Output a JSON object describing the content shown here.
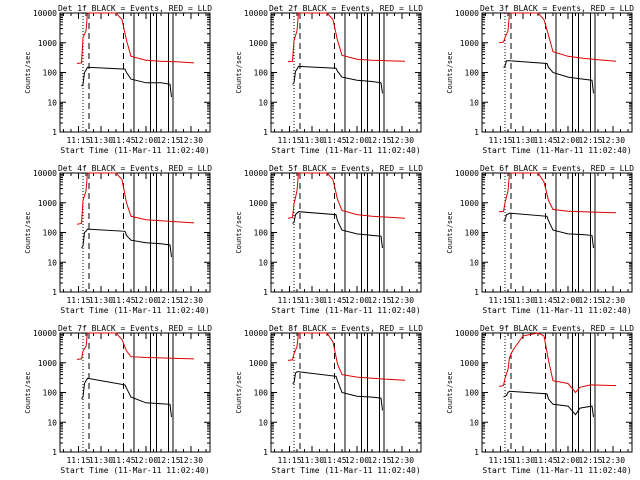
{
  "colors": {
    "events": "#000000",
    "lld": "#e00000",
    "axes": "#000000",
    "background": "#ffffff"
  },
  "chart_data": [
    {
      "type": "line",
      "title": "Det 1f BLACK = Events, RED = LLD",
      "ylabel": "Counts/sec",
      "xlabel": "Start Time (11-Mar-11 11:02:40)",
      "x_ticks": [
        "11:15",
        "11:30",
        "11:45",
        "12:00",
        "12:15",
        "12:30"
      ],
      "y_ticks": [
        "1",
        "10",
        "100",
        "1000",
        "10000"
      ],
      "ylim": [
        1,
        10000
      ],
      "xlim": [
        "11:02:40",
        "12:42:40"
      ],
      "y_scale": "log",
      "dotted_markers": [
        "11:18"
      ],
      "dashed_markers": [
        "11:22",
        "11:45"
      ],
      "solid_markers": [
        "11:52",
        "12:03",
        "12:07",
        "12:15",
        "12:18"
      ],
      "series": [
        {
          "name": "RED",
          "x": [
            "11:14",
            "11:17",
            "11:18",
            "11:20",
            "11:21",
            "11:23",
            "11:30",
            "11:40",
            "11:44",
            "11:47",
            "11:50",
            "12:00",
            "12:10",
            "12:20",
            "12:32"
          ],
          "y": [
            200,
            210,
            1500,
            2500,
            10000,
            10000,
            10000,
            10000,
            6000,
            1200,
            350,
            260,
            240,
            230,
            210
          ]
        },
        {
          "name": "BLACK",
          "x": [
            "11:17",
            "11:18",
            "11:19",
            "11:20",
            "11:21",
            "11:46",
            "11:47",
            "11:50",
            "12:00",
            "12:10",
            "12:16",
            "12:17"
          ],
          "y": [
            35,
            40,
            100,
            120,
            150,
            130,
            100,
            60,
            45,
            45,
            40,
            15
          ]
        }
      ]
    },
    {
      "type": "line",
      "title": "Det 2f BLACK = Events, RED = LLD",
      "ylabel": "Counts/sec",
      "xlabel": "Start Time (11-Mar-11 11:02:40)",
      "x_ticks": [
        "11:15",
        "11:30",
        "11:45",
        "12:00",
        "12:15",
        "12:30"
      ],
      "y_ticks": [
        "1",
        "10",
        "100",
        "1000",
        "10000"
      ],
      "ylim": [
        1,
        10000
      ],
      "xlim": [
        "11:02:40",
        "12:42:40"
      ],
      "y_scale": "log",
      "dotted_markers": [
        "11:18"
      ],
      "dashed_markers": [
        "11:22",
        "11:45"
      ],
      "solid_markers": [
        "11:52",
        "12:03",
        "12:07",
        "12:15",
        "12:18"
      ],
      "series": [
        {
          "name": "RED",
          "x": [
            "11:14",
            "11:17",
            "11:18",
            "11:20",
            "11:21",
            "11:23",
            "11:30",
            "11:40",
            "11:44",
            "11:47",
            "11:50",
            "12:00",
            "12:10",
            "12:20",
            "12:32"
          ],
          "y": [
            230,
            240,
            1200,
            2500,
            10000,
            10000,
            10000,
            10000,
            6000,
            1200,
            380,
            280,
            260,
            250,
            240
          ]
        },
        {
          "name": "BLACK",
          "x": [
            "11:17",
            "11:18",
            "11:19",
            "11:20",
            "11:21",
            "11:46",
            "11:47",
            "11:50",
            "12:00",
            "12:10",
            "12:16",
            "12:17"
          ],
          "y": [
            40,
            45,
            110,
            130,
            160,
            140,
            110,
            70,
            55,
            50,
            45,
            20
          ]
        }
      ]
    },
    {
      "type": "line",
      "title": "Det 3f BLACK = Events, RED = LLD",
      "ylabel": "Counts/sec",
      "xlabel": "Start Time (11-Mar-11 11:02:40)",
      "x_ticks": [
        "11:15",
        "11:30",
        "11:45",
        "12:00",
        "12:15",
        "12:30"
      ],
      "y_ticks": [
        "1",
        "10",
        "100",
        "1000",
        "10000"
      ],
      "ylim": [
        1,
        10000
      ],
      "xlim": [
        "11:02:40",
        "12:42:40"
      ],
      "y_scale": "log",
      "dotted_markers": [
        "11:18"
      ],
      "dashed_markers": [
        "11:22",
        "11:45"
      ],
      "solid_markers": [
        "11:52",
        "12:03",
        "12:07",
        "12:15",
        "12:18"
      ],
      "series": [
        {
          "name": "RED",
          "x": [
            "11:14",
            "11:17",
            "11:18",
            "11:20",
            "11:21",
            "11:23",
            "11:30",
            "11:40",
            "11:44",
            "11:47",
            "11:50",
            "12:00",
            "12:10",
            "12:20",
            "12:32"
          ],
          "y": [
            1000,
            1050,
            1500,
            2500,
            10000,
            10000,
            10000,
            10000,
            6000,
            1800,
            500,
            350,
            300,
            270,
            240
          ]
        },
        {
          "name": "BLACK",
          "x": [
            "11:17",
            "11:18",
            "11:19",
            "11:20",
            "11:21",
            "11:46",
            "11:47",
            "11:50",
            "12:00",
            "12:10",
            "12:16",
            "12:17"
          ],
          "y": [
            150,
            160,
            250,
            250,
            250,
            200,
            150,
            100,
            70,
            60,
            55,
            20
          ]
        }
      ]
    },
    {
      "type": "line",
      "title": "Det 4f BLACK = Events, RED = LLD",
      "ylabel": "Counts/sec",
      "xlabel": "Start Time (11-Mar-11 11:02:40)",
      "x_ticks": [
        "11:15",
        "11:30",
        "11:45",
        "12:00",
        "12:15",
        "12:30"
      ],
      "y_ticks": [
        "1",
        "10",
        "100",
        "1000",
        "10000"
      ],
      "ylim": [
        1,
        10000
      ],
      "xlim": [
        "11:02:40",
        "12:42:40"
      ],
      "y_scale": "log",
      "dotted_markers": [
        "11:18"
      ],
      "dashed_markers": [
        "11:22",
        "11:45"
      ],
      "solid_markers": [
        "11:52",
        "12:03",
        "12:07",
        "12:15",
        "12:18"
      ],
      "series": [
        {
          "name": "RED",
          "x": [
            "11:14",
            "11:17",
            "11:18",
            "11:20",
            "11:21",
            "11:23",
            "11:30",
            "11:40",
            "11:44",
            "11:47",
            "11:50",
            "12:00",
            "12:10",
            "12:20",
            "12:32"
          ],
          "y": [
            190,
            200,
            1200,
            2500,
            10000,
            10000,
            10000,
            10000,
            6000,
            1000,
            350,
            270,
            250,
            230,
            210
          ]
        },
        {
          "name": "BLACK",
          "x": [
            "11:17",
            "11:18",
            "11:19",
            "11:20",
            "11:21",
            "11:46",
            "11:47",
            "11:50",
            "12:00",
            "12:10",
            "12:16",
            "12:17"
          ],
          "y": [
            30,
            35,
            100,
            110,
            130,
            110,
            80,
            55,
            45,
            42,
            38,
            15
          ]
        }
      ]
    },
    {
      "type": "line",
      "title": "Det 5f BLACK = Events, RED = LLD",
      "ylabel": "Counts/sec",
      "xlabel": "Start Time (11-Mar-11 11:02:40)",
      "x_ticks": [
        "11:15",
        "11:30",
        "11:45",
        "12:00",
        "12:15",
        "12:30"
      ],
      "y_ticks": [
        "1",
        "10",
        "100",
        "1000",
        "10000"
      ],
      "ylim": [
        1,
        10000
      ],
      "xlim": [
        "11:02:40",
        "12:42:40"
      ],
      "y_scale": "log",
      "dotted_markers": [
        "11:18"
      ],
      "dashed_markers": [
        "11:22",
        "11:45"
      ],
      "solid_markers": [
        "11:52",
        "12:03",
        "12:07",
        "12:15",
        "12:18"
      ],
      "series": [
        {
          "name": "RED",
          "x": [
            "11:14",
            "11:17",
            "11:18",
            "11:20",
            "11:21",
            "11:23",
            "11:30",
            "11:40",
            "11:44",
            "11:47",
            "11:50",
            "12:00",
            "12:10",
            "12:20",
            "12:32"
          ],
          "y": [
            300,
            320,
            900,
            2500,
            10000,
            10000,
            10000,
            10000,
            6000,
            1300,
            550,
            400,
            350,
            330,
            300
          ]
        },
        {
          "name": "BLACK",
          "x": [
            "11:17",
            "11:18",
            "11:19",
            "11:20",
            "11:21",
            "11:46",
            "11:47",
            "11:50",
            "12:00",
            "12:10",
            "12:16",
            "12:17"
          ],
          "y": [
            200,
            220,
            400,
            450,
            500,
            400,
            250,
            120,
            90,
            80,
            75,
            30
          ]
        }
      ]
    },
    {
      "type": "line",
      "title": "Det 6f BLACK = Events, RED = LLD",
      "ylabel": "Counts/sec",
      "xlabel": "Start Time (11-Mar-11 11:02:40)",
      "x_ticks": [
        "11:15",
        "11:30",
        "11:45",
        "12:00",
        "12:15",
        "12:30"
      ],
      "y_ticks": [
        "1",
        "10",
        "100",
        "1000",
        "10000"
      ],
      "ylim": [
        1,
        10000
      ],
      "xlim": [
        "11:02:40",
        "12:42:40"
      ],
      "y_scale": "log",
      "dotted_markers": [
        "11:18"
      ],
      "dashed_markers": [
        "11:22",
        "11:45"
      ],
      "solid_markers": [
        "11:52",
        "12:03",
        "12:07",
        "12:15",
        "12:18"
      ],
      "series": [
        {
          "name": "RED",
          "x": [
            "11:14",
            "11:17",
            "11:18",
            "11:20",
            "11:21",
            "11:23",
            "11:30",
            "11:40",
            "11:44",
            "11:47",
            "11:50",
            "12:00",
            "12:10",
            "12:20",
            "12:32"
          ],
          "y": [
            500,
            510,
            1000,
            2500,
            10000,
            10000,
            10000,
            10000,
            5000,
            1200,
            600,
            520,
            500,
            480,
            460
          ]
        },
        {
          "name": "BLACK",
          "x": [
            "11:17",
            "11:18",
            "11:19",
            "11:20",
            "11:21",
            "11:46",
            "11:47",
            "11:50",
            "12:00",
            "12:10",
            "12:16",
            "12:17"
          ],
          "y": [
            250,
            260,
            400,
            420,
            450,
            350,
            250,
            120,
            90,
            85,
            80,
            30
          ]
        }
      ]
    },
    {
      "type": "line",
      "title": "Det 7f BLACK = Events, RED = LLD",
      "ylabel": "Counts/sec",
      "xlabel": "Start Time (11-Mar-11 11:02:40)",
      "x_ticks": [
        "11:15",
        "11:30",
        "11:45",
        "12:00",
        "12:15",
        "12:30"
      ],
      "y_ticks": [
        "1",
        "10",
        "100",
        "1000",
        "10000"
      ],
      "ylim": [
        1,
        10000
      ],
      "xlim": [
        "11:02:40",
        "12:42:40"
      ],
      "y_scale": "log",
      "dotted_markers": [
        "11:18"
      ],
      "dashed_markers": [
        "11:22",
        "11:45"
      ],
      "solid_markers": [
        "11:52",
        "12:03",
        "12:07",
        "12:15",
        "12:18"
      ],
      "series": [
        {
          "name": "RED",
          "x": [
            "11:14",
            "11:17",
            "11:18",
            "11:20",
            "11:21",
            "11:23",
            "11:30",
            "11:40",
            "11:44",
            "11:47",
            "11:50",
            "12:00",
            "12:10",
            "12:20",
            "12:32"
          ],
          "y": [
            1300,
            1350,
            2500,
            3500,
            10000,
            10000,
            10000,
            10000,
            6000,
            2500,
            1600,
            1500,
            1450,
            1400,
            1350
          ]
        },
        {
          "name": "BLACK",
          "x": [
            "11:17",
            "11:18",
            "11:19",
            "11:20",
            "11:21",
            "11:46",
            "11:47",
            "11:50",
            "12:00",
            "12:10",
            "12:16",
            "12:17"
          ],
          "y": [
            60,
            70,
            200,
            250,
            300,
            180,
            140,
            70,
            45,
            42,
            40,
            15
          ]
        }
      ]
    },
    {
      "type": "line",
      "title": "Det 8f BLACK = Events, RED = LLD",
      "ylabel": "Counts/sec",
      "xlabel": "Start Time (11-Mar-11 11:02:40)",
      "x_ticks": [
        "11:15",
        "11:30",
        "11:45",
        "12:00",
        "12:15",
        "12:30"
      ],
      "y_ticks": [
        "1",
        "10",
        "100",
        "1000",
        "10000"
      ],
      "ylim": [
        1,
        10000
      ],
      "xlim": [
        "11:02:40",
        "12:42:40"
      ],
      "y_scale": "log",
      "dotted_markers": [
        "11:18"
      ],
      "dashed_markers": [
        "11:22",
        "11:45"
      ],
      "solid_markers": [
        "11:52",
        "12:03",
        "12:07",
        "12:15",
        "12:18"
      ],
      "series": [
        {
          "name": "RED",
          "x": [
            "11:14",
            "11:17",
            "11:18",
            "11:20",
            "11:21",
            "11:23",
            "11:30",
            "11:40",
            "11:44",
            "11:47",
            "11:50",
            "12:00",
            "12:10",
            "12:20",
            "12:32"
          ],
          "y": [
            1200,
            1250,
            2000,
            3500,
            10000,
            10000,
            10000,
            10000,
            5000,
            900,
            400,
            330,
            300,
            280,
            260
          ]
        },
        {
          "name": "BLACK",
          "x": [
            "11:17",
            "11:18",
            "11:19",
            "11:20",
            "11:21",
            "11:46",
            "11:47",
            "11:50",
            "12:00",
            "12:10",
            "12:16",
            "12:17"
          ],
          "y": [
            200,
            210,
            450,
            500,
            500,
            350,
            250,
            100,
            75,
            70,
            65,
            25
          ]
        }
      ]
    },
    {
      "type": "line",
      "title": "Det 9f BLACK = Events, RED = LLD",
      "ylabel": "Counts/sec",
      "xlabel": "Start Time (11-Mar-11 11:02:40)",
      "x_ticks": [
        "11:15",
        "11:30",
        "11:45",
        "12:00",
        "12:15",
        "12:30"
      ],
      "y_ticks": [
        "1",
        "10",
        "100",
        "1000",
        "10000"
      ],
      "ylim": [
        1,
        10000
      ],
      "xlim": [
        "11:02:40",
        "12:42:40"
      ],
      "y_scale": "log",
      "dotted_markers": [
        "11:18"
      ],
      "dashed_markers": [
        "11:22",
        "11:45"
      ],
      "solid_markers": [
        "11:52",
        "12:03",
        "12:07",
        "12:15",
        "12:18"
      ],
      "series": [
        {
          "name": "RED",
          "x": [
            "11:14",
            "11:17",
            "11:18",
            "11:20",
            "11:21",
            "11:23",
            "11:30",
            "11:40",
            "11:44",
            "11:47",
            "11:50",
            "12:00",
            "12:05",
            "12:08",
            "12:15",
            "12:32"
          ],
          "y": [
            160,
            170,
            300,
            600,
            1500,
            2500,
            8000,
            10000,
            8000,
            1200,
            250,
            200,
            100,
            150,
            180,
            170
          ]
        },
        {
          "name": "BLACK",
          "x": [
            "11:17",
            "11:18",
            "11:19",
            "11:20",
            "11:21",
            "11:46",
            "11:47",
            "11:50",
            "12:00",
            "12:05",
            "12:08",
            "12:16",
            "12:17"
          ],
          "y": [
            70,
            75,
            80,
            100,
            110,
            90,
            60,
            40,
            35,
            18,
            30,
            35,
            15
          ]
        }
      ]
    }
  ]
}
